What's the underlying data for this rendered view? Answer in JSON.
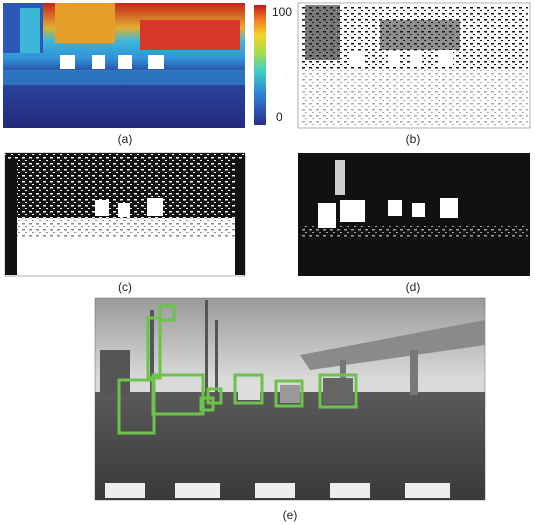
{
  "panels": [
    {
      "label": "(a)"
    },
    {
      "label": "(b)"
    },
    {
      "label": "(c)"
    },
    {
      "label": "(d)"
    },
    {
      "label": "(e)"
    }
  ],
  "colorbar": {
    "max": 100,
    "min": 0
  }
}
